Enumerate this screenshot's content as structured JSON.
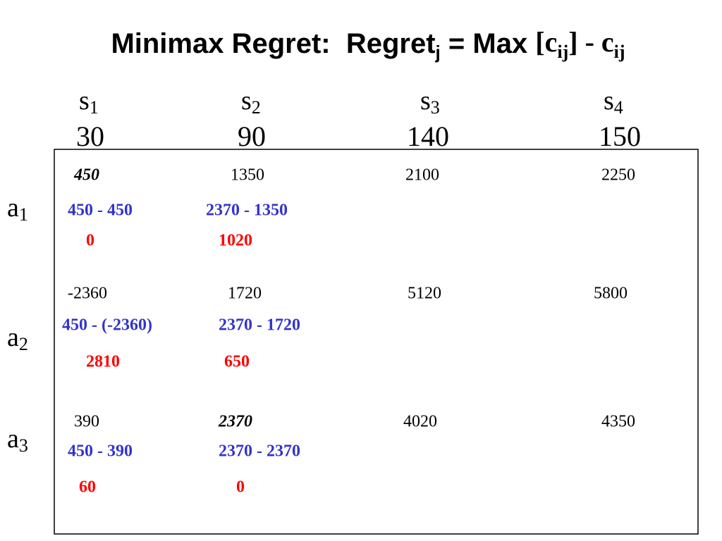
{
  "title": [
    "Minimax Regret:  Regret",
    "j",
    " = Max ",
    "[c",
    "ij",
    "] - c",
    "ij"
  ],
  "states": [
    {
      "letter": "s",
      "sub": "1",
      "value": 30
    },
    {
      "letter": "s",
      "sub": "2",
      "value": 90
    },
    {
      "letter": "s",
      "sub": "3",
      "value": 140
    },
    {
      "letter": "s",
      "sub": "4",
      "value": 150
    }
  ],
  "actions": [
    {
      "letter": "a",
      "sub": "1",
      "payoffs": [
        450,
        1350,
        2100,
        2250
      ],
      "expressions": [
        "450 - 450",
        "2370 - 1350"
      ],
      "regrets": [
        0,
        1020
      ]
    },
    {
      "letter": "a",
      "sub": "2",
      "payoffs": [
        -2360,
        1720,
        5120,
        5800
      ],
      "expressions": [
        "450 - (-2360)",
        "2370 - 1720"
      ],
      "regrets": [
        2810,
        650
      ]
    },
    {
      "letter": "a",
      "sub": "3",
      "payoffs": [
        390,
        2370,
        4020,
        4350
      ],
      "expressions": [
        "450 - 390",
        "2370 - 2370"
      ],
      "regrets": [
        60,
        0
      ]
    }
  ]
}
